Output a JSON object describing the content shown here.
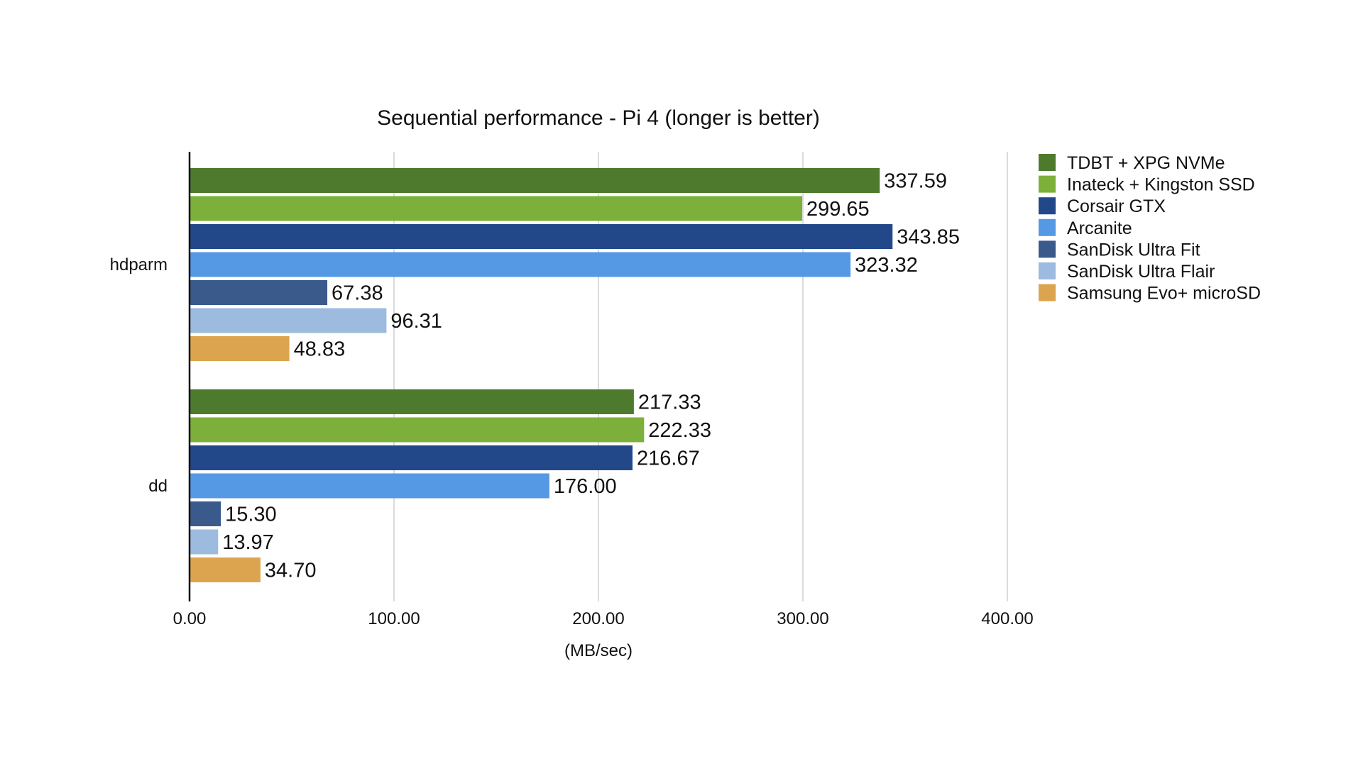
{
  "chart_data": {
    "type": "bar",
    "orientation": "horizontal",
    "title": "Sequential performance - Pi 4 (longer is better)",
    "xlabel": "(MB/sec)",
    "ylabel": "",
    "xlim": [
      0,
      400
    ],
    "x_ticks": [
      "0.00",
      "100.00",
      "200.00",
      "300.00",
      "400.00"
    ],
    "x_tick_values": [
      0,
      100,
      200,
      300,
      400
    ],
    "grid": "vertical",
    "legend_position": "right",
    "categories": [
      "hdparm",
      "dd"
    ],
    "series": [
      {
        "name": "TDBT + XPG NVMe",
        "color": "#4e7a2e",
        "values": [
          337.59,
          217.33
        ],
        "labels": [
          "337.59",
          "217.33"
        ]
      },
      {
        "name": "Inateck + Kingston SSD",
        "color": "#7cb03a",
        "values": [
          299.65,
          222.33
        ],
        "labels": [
          "299.65",
          "222.33"
        ]
      },
      {
        "name": "Corsair GTX",
        "color": "#23488a",
        "values": [
          343.85,
          216.67
        ],
        "labels": [
          "343.85",
          "216.67"
        ]
      },
      {
        "name": "Arcanite",
        "color": "#5598e4",
        "values": [
          323.32,
          176.0
        ],
        "labels": [
          "323.32",
          "176.00"
        ]
      },
      {
        "name": "SanDisk Ultra Fit",
        "color": "#3a5a8c",
        "values": [
          67.38,
          15.3
        ],
        "labels": [
          "67.38",
          "15.30"
        ]
      },
      {
        "name": "SanDisk Ultra Flair",
        "color": "#9dbadf",
        "values": [
          96.31,
          13.97
        ],
        "labels": [
          "96.31",
          "13.97"
        ]
      },
      {
        "name": "Samsung Evo+ microSD",
        "color": "#dca44e",
        "values": [
          48.83,
          34.7
        ],
        "labels": [
          "48.83",
          "34.70"
        ]
      }
    ]
  }
}
